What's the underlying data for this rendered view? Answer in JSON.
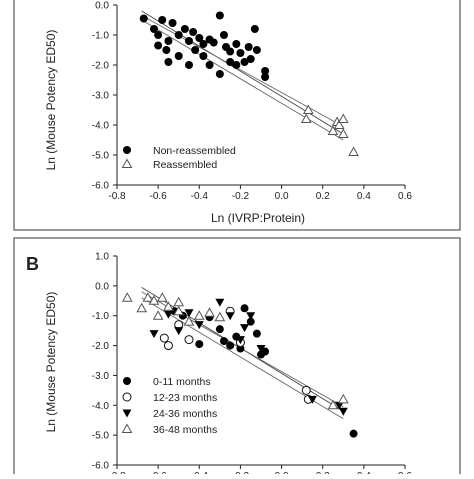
{
  "chart_data": [
    {
      "panel_label": "",
      "type": "scatter",
      "xlabel": "Ln (IVRP:Protein)",
      "ylabel": "Ln (Mouse Potency ED50)",
      "xlim": [
        -0.8,
        0.6
      ],
      "ylim": [
        -6.0,
        0.0
      ],
      "x_ticks": [
        "-0.8",
        "-0.6",
        "-0.4",
        "-0.2",
        "0.0",
        "0.2",
        "0.4",
        "0.6"
      ],
      "y_ticks": [
        "0.0",
        "-1.0",
        "-2.0",
        "-3.0",
        "-4.0",
        "-5.0",
        "-6.0"
      ],
      "legend_position": "bottom-left",
      "series": [
        {
          "name": "Non-reassembled",
          "marker": "filled-circle",
          "points": [
            [
              -0.67,
              -0.45
            ],
            [
              -0.62,
              -0.8
            ],
            [
              -0.58,
              -0.5
            ],
            [
              -0.6,
              -1.0
            ],
            [
              -0.55,
              -1.2
            ],
            [
              -0.56,
              -1.5
            ],
            [
              -0.53,
              -0.6
            ],
            [
              -0.5,
              -1.0
            ],
            [
              -0.47,
              -0.8
            ],
            [
              -0.45,
              -1.2
            ],
            [
              -0.43,
              -0.9
            ],
            [
              -0.4,
              -1.1
            ],
            [
              -0.38,
              -1.3
            ],
            [
              -0.35,
              -1.15
            ],
            [
              -0.33,
              -1.25
            ],
            [
              -0.3,
              -0.35
            ],
            [
              -0.28,
              -1.0
            ],
            [
              -0.27,
              -1.4
            ],
            [
              -0.25,
              -1.55
            ],
            [
              -0.22,
              -1.3
            ],
            [
              -0.2,
              -1.6
            ],
            [
              -0.18,
              -1.9
            ],
            [
              -0.16,
              -1.4
            ],
            [
              -0.15,
              -1.8
            ],
            [
              -0.13,
              -0.8
            ],
            [
              -0.12,
              -1.5
            ],
            [
              -0.3,
              -2.3
            ],
            [
              -0.38,
              -1.7
            ],
            [
              -0.45,
              -2.0
            ],
            [
              -0.5,
              -1.7
            ],
            [
              -0.42,
              -1.5
            ],
            [
              -0.25,
              -1.9
            ],
            [
              -0.22,
              -2.0
            ],
            [
              -0.55,
              -1.9
            ],
            [
              -0.35,
              -2.0
            ],
            [
              -0.08,
              -2.2
            ],
            [
              -0.08,
              -2.4
            ],
            [
              -0.6,
              -1.35
            ]
          ]
        },
        {
          "name": "Reassembled",
          "marker": "open-triangle",
          "points": [
            [
              0.13,
              -3.5
            ],
            [
              0.12,
              -3.8
            ],
            [
              0.25,
              -4.2
            ],
            [
              0.27,
              -3.9
            ],
            [
              0.28,
              -4.0
            ],
            [
              0.3,
              -4.3
            ],
            [
              0.3,
              -3.8
            ],
            [
              0.35,
              -4.9
            ]
          ]
        }
      ],
      "fit_lines": [
        {
          "name": "",
          "points": [
            [
              -0.68,
              -0.2
            ],
            [
              0.3,
              -4.3
            ]
          ]
        },
        {
          "name": "",
          "points": [
            [
              -0.68,
              -0.35
            ],
            [
              0.3,
              -4.05
            ]
          ]
        },
        {
          "name": "",
          "points": [
            [
              -0.68,
              -0.5
            ],
            [
              0.3,
              -4.5
            ]
          ]
        }
      ]
    },
    {
      "panel_label": "B",
      "type": "scatter",
      "xlabel": "",
      "ylabel": "Ln (Mouse Potency ED50)",
      "xlim": [
        -0.8,
        0.6
      ],
      "ylim": [
        -6.0,
        1.0
      ],
      "x_ticks": [
        "-0.8",
        "-0.6",
        "-0.4",
        "-0.2",
        "0.0",
        "0.2",
        "0.4",
        "0.6"
      ],
      "y_ticks": [
        "1.0",
        "0.0",
        "-1.0",
        "-2.0",
        "-3.0",
        "-4.0",
        "-5.0",
        "-6.0"
      ],
      "legend_position": "bottom-left",
      "series": [
        {
          "name": "0-11 months",
          "marker": "filled-circle",
          "points": [
            [
              -0.52,
              -0.85
            ],
            [
              -0.48,
              -1.0
            ],
            [
              -0.4,
              -1.95
            ],
            [
              -0.3,
              -1.45
            ],
            [
              -0.28,
              -1.85
            ],
            [
              -0.25,
              -2.0
            ],
            [
              -0.22,
              -1.7
            ],
            [
              -0.2,
              -2.1
            ],
            [
              -0.18,
              -0.75
            ],
            [
              -0.12,
              -1.6
            ],
            [
              -0.1,
              -2.3
            ],
            [
              -0.08,
              -2.2
            ],
            [
              -0.15,
              -1.2
            ],
            [
              0.35,
              -4.95
            ],
            [
              -0.35,
              -1.05
            ]
          ]
        },
        {
          "name": "12-23 months",
          "marker": "open-circle",
          "points": [
            [
              -0.57,
              -1.75
            ],
            [
              -0.55,
              -2.0
            ],
            [
              -0.5,
              -1.3
            ],
            [
              -0.45,
              -1.8
            ],
            [
              -0.25,
              -0.85
            ],
            [
              0.12,
              -3.5
            ],
            [
              0.13,
              -3.8
            ],
            [
              -0.2,
              -1.9
            ]
          ]
        },
        {
          "name": "24-36 months",
          "marker": "filled-triangle-down",
          "points": [
            [
              -0.62,
              -1.6
            ],
            [
              -0.55,
              -0.95
            ],
            [
              -0.5,
              -1.5
            ],
            [
              -0.45,
              -0.9
            ],
            [
              -0.4,
              -1.3
            ],
            [
              -0.3,
              -0.55
            ],
            [
              -0.25,
              -1.0
            ],
            [
              -0.18,
              -1.4
            ],
            [
              -0.15,
              -1.0
            ],
            [
              -0.1,
              -2.1
            ],
            [
              0.15,
              -3.8
            ],
            [
              0.28,
              -4.0
            ],
            [
              0.3,
              -4.2
            ],
            [
              -0.2,
              -1.8
            ]
          ]
        },
        {
          "name": "36-48 months",
          "marker": "open-triangle",
          "points": [
            [
              -0.75,
              -0.4
            ],
            [
              -0.68,
              -0.75
            ],
            [
              -0.65,
              -0.4
            ],
            [
              -0.62,
              -0.5
            ],
            [
              -0.58,
              -0.4
            ],
            [
              -0.55,
              -0.7
            ],
            [
              -0.5,
              -0.85
            ],
            [
              -0.45,
              -1.2
            ],
            [
              -0.4,
              -1.0
            ],
            [
              -0.35,
              -0.9
            ],
            [
              -0.3,
              -1.05
            ],
            [
              -0.6,
              -1.0
            ],
            [
              -0.5,
              -0.55
            ],
            [
              0.25,
              -4.0
            ],
            [
              0.3,
              -3.8
            ]
          ]
        }
      ],
      "fit_lines": [
        {
          "name": "",
          "points": [
            [
              -0.68,
              -0.05
            ],
            [
              0.3,
              -4.2
            ]
          ]
        },
        {
          "name": "",
          "points": [
            [
              -0.68,
              -0.2
            ],
            [
              0.3,
              -4.05
            ]
          ]
        },
        {
          "name": "",
          "points": [
            [
              -0.68,
              -0.4
            ],
            [
              0.3,
              -4.45
            ]
          ]
        }
      ]
    }
  ]
}
